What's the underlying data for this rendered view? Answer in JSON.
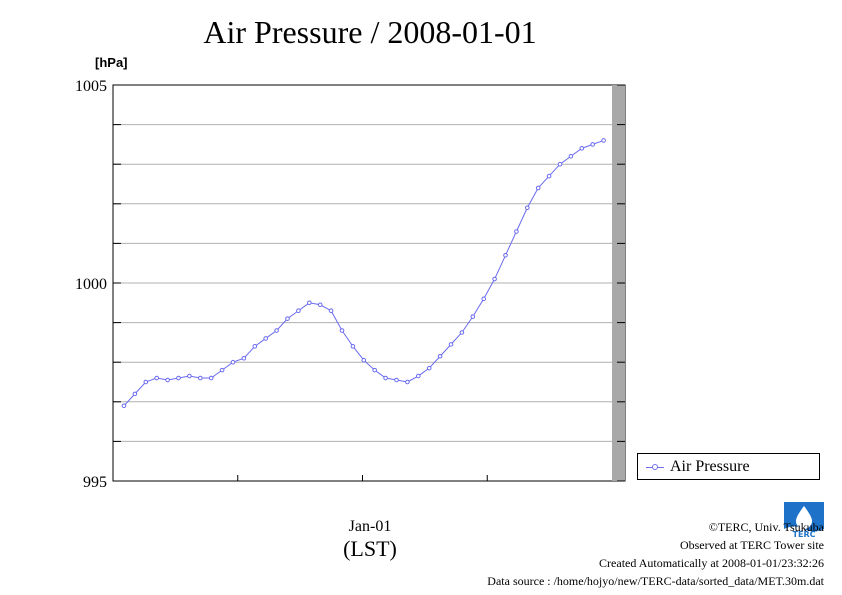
{
  "chart_data": {
    "type": "line",
    "title": "Air Pressure / 2008-01-01",
    "ylabel": "[hPa]",
    "xlabel": "(LST)",
    "x_tick_label": "Jan-01",
    "ylim": [
      995,
      1005
    ],
    "y_ticks": [
      "995",
      "1000",
      "1005"
    ],
    "grid": true,
    "legend": "right",
    "series": [
      {
        "name": "Air Pressure",
        "color": "#6a6af0",
        "values": [
          996.9,
          997.2,
          997.5,
          997.6,
          997.55,
          997.6,
          997.65,
          997.6,
          997.6,
          997.8,
          998.0,
          998.1,
          998.4,
          998.6,
          998.8,
          999.1,
          999.3,
          999.5,
          999.45,
          999.3,
          998.8,
          998.4,
          998.05,
          997.8,
          997.6,
          997.55,
          997.5,
          997.65,
          997.85,
          998.15,
          998.45,
          998.75,
          999.15,
          999.6,
          1000.1,
          1000.7,
          1001.3,
          1001.9,
          1002.4,
          1002.7,
          1003.0,
          1003.2,
          1003.4,
          1003.5,
          1003.6
        ]
      }
    ]
  },
  "credits": {
    "copyright": "©TERC, Univ. Tsukuba",
    "observed": "Observed at TERC Tower site",
    "created": "Created Automatically at 2008-01-01/23:32:26",
    "source": "Data source : /home/hojyo/new/TERC-data/sorted_data/MET.30m.dat"
  },
  "logo_text": "TERC"
}
